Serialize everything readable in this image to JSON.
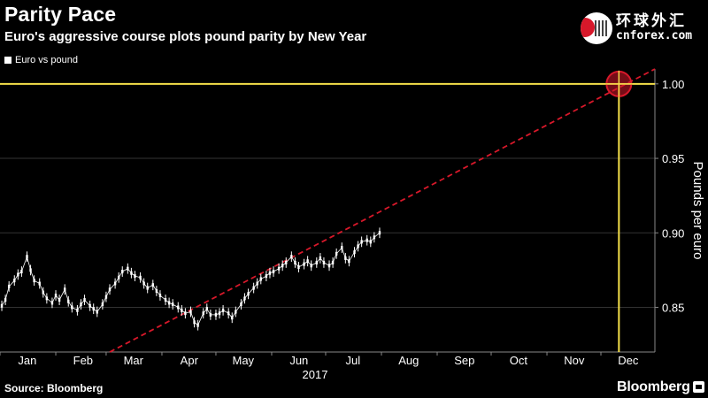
{
  "header": {
    "title": "Parity Pace",
    "subtitle": "Euro's aggressive course plots pound parity by New Year"
  },
  "logo": {
    "cn": "环球外汇",
    "en": "cnforex.com"
  },
  "footer": {
    "source": "Source: Bloomberg",
    "brand": "Bloomberg"
  },
  "colors": {
    "background": "#000000",
    "price": "#ffffff",
    "trend": "#d7182a",
    "target": "#f5e04a",
    "grid": "#333333"
  },
  "chart_data": {
    "type": "line",
    "title": "Parity Pace",
    "subtitle": "Euro's aggressive course plots pound parity by New Year",
    "legend": [
      "Euro vs pound"
    ],
    "legend_position": "top-left",
    "ylabel": "Pounds per euro",
    "y_axis_side": "right",
    "ylim": [
      0.82,
      1.01
    ],
    "yticks": [
      0.85,
      0.9,
      0.95,
      1.0
    ],
    "ytick_labels": [
      "0.85",
      "0.90",
      "0.95",
      "1.00"
    ],
    "xlim": [
      "2017-01-01",
      "2017-12-31"
    ],
    "x_ticks": [
      "Jan",
      "Feb",
      "Mar",
      "Apr",
      "May",
      "Jun",
      "Jul",
      "Aug",
      "Sep",
      "Oct",
      "Nov",
      "Dec"
    ],
    "x_year_label": "2017",
    "grid": "horizontal",
    "series": [
      {
        "name": "Euro vs pound",
        "style": "candlestick-like daily bars",
        "points": [
          [
            "2017-01-02",
            0.851
          ],
          [
            "2017-01-04",
            0.855
          ],
          [
            "2017-01-06",
            0.864
          ],
          [
            "2017-01-09",
            0.868
          ],
          [
            "2017-01-11",
            0.872
          ],
          [
            "2017-01-13",
            0.874
          ],
          [
            "2017-01-16",
            0.884
          ],
          [
            "2017-01-18",
            0.875
          ],
          [
            "2017-01-20",
            0.868
          ],
          [
            "2017-01-23",
            0.866
          ],
          [
            "2017-01-25",
            0.86
          ],
          [
            "2017-01-27",
            0.856
          ],
          [
            "2017-01-30",
            0.853
          ],
          [
            "2017-02-01",
            0.858
          ],
          [
            "2017-02-03",
            0.855
          ],
          [
            "2017-02-06",
            0.862
          ],
          [
            "2017-02-08",
            0.854
          ],
          [
            "2017-02-10",
            0.85
          ],
          [
            "2017-02-13",
            0.848
          ],
          [
            "2017-02-15",
            0.852
          ],
          [
            "2017-02-17",
            0.855
          ],
          [
            "2017-02-20",
            0.851
          ],
          [
            "2017-02-22",
            0.849
          ],
          [
            "2017-02-24",
            0.847
          ],
          [
            "2017-02-27",
            0.852
          ],
          [
            "2017-03-01",
            0.857
          ],
          [
            "2017-03-03",
            0.862
          ],
          [
            "2017-03-06",
            0.866
          ],
          [
            "2017-03-08",
            0.87
          ],
          [
            "2017-03-10",
            0.874
          ],
          [
            "2017-03-13",
            0.876
          ],
          [
            "2017-03-15",
            0.873
          ],
          [
            "2017-03-17",
            0.871
          ],
          [
            "2017-03-20",
            0.87
          ],
          [
            "2017-03-22",
            0.866
          ],
          [
            "2017-03-24",
            0.863
          ],
          [
            "2017-03-27",
            0.865
          ],
          [
            "2017-03-29",
            0.861
          ],
          [
            "2017-03-31",
            0.858
          ],
          [
            "2017-04-03",
            0.855
          ],
          [
            "2017-04-05",
            0.853
          ],
          [
            "2017-04-07",
            0.852
          ],
          [
            "2017-04-10",
            0.85
          ],
          [
            "2017-04-12",
            0.848
          ],
          [
            "2017-04-14",
            0.846
          ],
          [
            "2017-04-17",
            0.847
          ],
          [
            "2017-04-19",
            0.84
          ],
          [
            "2017-04-21",
            0.838
          ],
          [
            "2017-04-24",
            0.846
          ],
          [
            "2017-04-26",
            0.849
          ],
          [
            "2017-04-28",
            0.845
          ],
          [
            "2017-05-01",
            0.845
          ],
          [
            "2017-05-03",
            0.846
          ],
          [
            "2017-05-05",
            0.848
          ],
          [
            "2017-05-08",
            0.846
          ],
          [
            "2017-05-10",
            0.843
          ],
          [
            "2017-05-12",
            0.847
          ],
          [
            "2017-05-15",
            0.852
          ],
          [
            "2017-05-17",
            0.856
          ],
          [
            "2017-05-19",
            0.859
          ],
          [
            "2017-05-22",
            0.863
          ],
          [
            "2017-05-24",
            0.866
          ],
          [
            "2017-05-26",
            0.869
          ],
          [
            "2017-05-29",
            0.871
          ],
          [
            "2017-05-31",
            0.873
          ],
          [
            "2017-06-02",
            0.874
          ],
          [
            "2017-06-05",
            0.876
          ],
          [
            "2017-06-07",
            0.878
          ],
          [
            "2017-06-09",
            0.88
          ],
          [
            "2017-06-12",
            0.884
          ],
          [
            "2017-06-14",
            0.88
          ],
          [
            "2017-06-16",
            0.877
          ],
          [
            "2017-06-19",
            0.879
          ],
          [
            "2017-06-21",
            0.881
          ],
          [
            "2017-06-23",
            0.878
          ],
          [
            "2017-06-26",
            0.88
          ],
          [
            "2017-06-28",
            0.883
          ],
          [
            "2017-06-30",
            0.88
          ],
          [
            "2017-07-03",
            0.878
          ],
          [
            "2017-07-05",
            0.88
          ],
          [
            "2017-07-07",
            0.886
          ],
          [
            "2017-07-10",
            0.89
          ],
          [
            "2017-07-12",
            0.883
          ],
          [
            "2017-07-14",
            0.881
          ],
          [
            "2017-07-17",
            0.887
          ],
          [
            "2017-07-19",
            0.891
          ],
          [
            "2017-07-21",
            0.894
          ],
          [
            "2017-07-24",
            0.895
          ],
          [
            "2017-07-26",
            0.894
          ],
          [
            "2017-07-28",
            0.897
          ],
          [
            "2017-07-31",
            0.9
          ]
        ]
      },
      {
        "name": "trend",
        "style": "dashed",
        "points": [
          [
            "2017-03-03",
            0.82
          ],
          [
            "2017-12-31",
            1.01
          ]
        ]
      },
      {
        "name": "parity",
        "style": "solid",
        "y": 1.0,
        "x": "2017-12-11"
      }
    ],
    "annotations": [
      {
        "type": "target-marker",
        "x": "2017-12-11",
        "y": 1.0
      }
    ]
  }
}
